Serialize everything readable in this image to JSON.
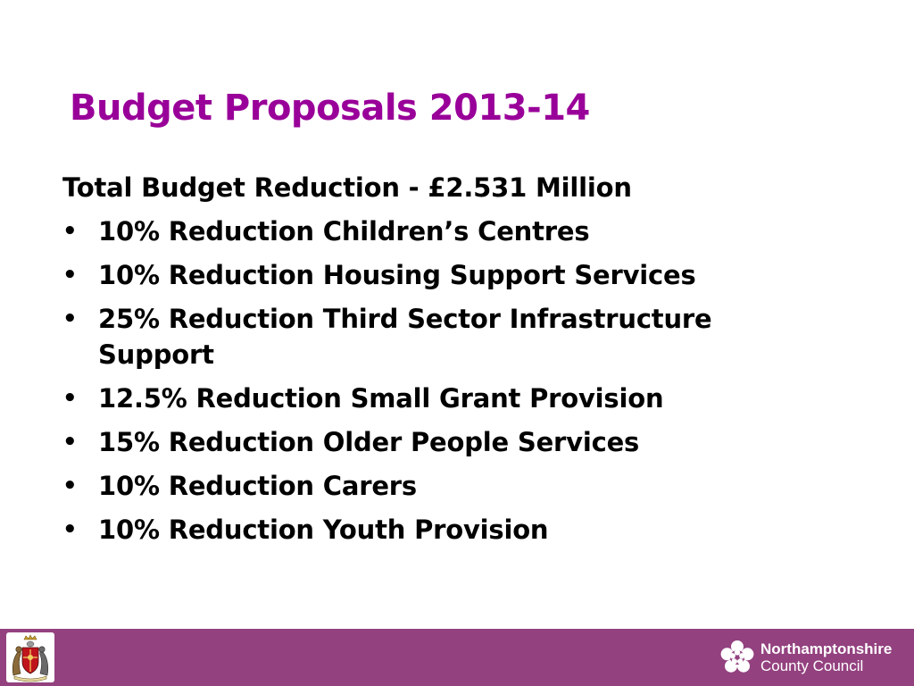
{
  "slide": {
    "title": "Budget Proposals 2013-14",
    "summary": "Total Budget Reduction - £2.531 Million",
    "bullet_symbol": "•",
    "bullets": [
      "10% Reduction Children’s Centres",
      "10% Reduction Housing Support Services",
      "25% Reduction Third Sector Infrastructure Support",
      "12.5% Reduction Small Grant Provision",
      "15% Reduction Older People Services",
      "10% Reduction Carers",
      "10% Reduction Youth Provision"
    ]
  },
  "footer": {
    "background_color": "#93417f",
    "crest_icon": "coat-of-arms-icon",
    "logo_icon": "rose-icon",
    "logo_line1": "Northamptonshire",
    "logo_line2": "County Council"
  },
  "colors": {
    "title": "#990099",
    "text": "#000000",
    "background": "#ffffff"
  }
}
